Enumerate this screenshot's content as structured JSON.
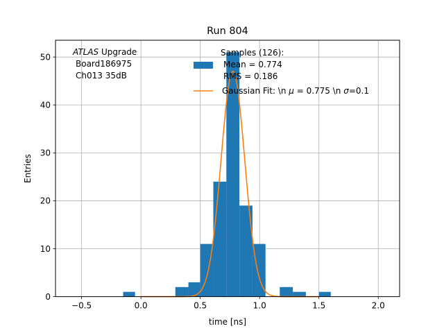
{
  "chart_data": {
    "type": "bar",
    "title": "Run 804",
    "xlabel": "time [ns]",
    "ylabel": "Entries",
    "xlim": [
      -0.72,
      2.18
    ],
    "ylim": [
      0,
      53.5
    ],
    "grid": true,
    "x_ticks": [
      -0.5,
      0.0,
      0.5,
      1.0,
      1.5,
      2.0
    ],
    "x_tick_labels": [
      "−0.5",
      "0.0",
      "0.5",
      "1.0",
      "1.5",
      "2.0"
    ],
    "y_ticks": [
      0,
      10,
      20,
      30,
      40,
      50
    ],
    "y_tick_labels": [
      "0",
      "10",
      "20",
      "30",
      "40",
      "50"
    ],
    "bar_color": "#1f77b4",
    "fit_color": "#ff7f0e",
    "histogram": {
      "name": "Samples (126):\n Mean = 0.774\n RMS = 0.186",
      "bins": [
        {
          "x0": -0.15,
          "x1": -0.05,
          "count": 1
        },
        {
          "x0": 0.29,
          "x1": 0.4,
          "count": 2
        },
        {
          "x0": 0.4,
          "x1": 0.5,
          "count": 3
        },
        {
          "x0": 0.5,
          "x1": 0.61,
          "count": 11
        },
        {
          "x0": 0.61,
          "x1": 0.72,
          "count": 24
        },
        {
          "x0": 0.72,
          "x1": 0.83,
          "count": 51
        },
        {
          "x0": 0.83,
          "x1": 0.94,
          "count": 19
        },
        {
          "x0": 0.94,
          "x1": 1.05,
          "count": 11
        },
        {
          "x0": 1.17,
          "x1": 1.28,
          "count": 2
        },
        {
          "x0": 1.28,
          "x1": 1.39,
          "count": 1
        },
        {
          "x0": 1.5,
          "x1": 1.6,
          "count": 1
        }
      ]
    },
    "fit": {
      "name": "Gaussian Fit: \\n μ = 0.775 \\n σ=0.1",
      "mu": 0.775,
      "sigma": 0.1,
      "amplitude": 47,
      "x_range": [
        0.0,
        1.5
      ]
    },
    "annotation": {
      "italic": "ATLAS",
      "rest": " Upgrade",
      "line2": "Board186975",
      "line3": "Ch013 35dB"
    },
    "legend": {
      "placement": "top-center",
      "hist_line1": "Samples (126):",
      "hist_line2": "Mean = 0.774",
      "hist_line3": "RMS = 0.186",
      "fit_pre": "Gaussian Fit: \\n ",
      "fit_mu": "μ",
      "fit_mid": " = 0.775 \\n ",
      "fit_sigma": "σ",
      "fit_post": "=0.1"
    }
  }
}
